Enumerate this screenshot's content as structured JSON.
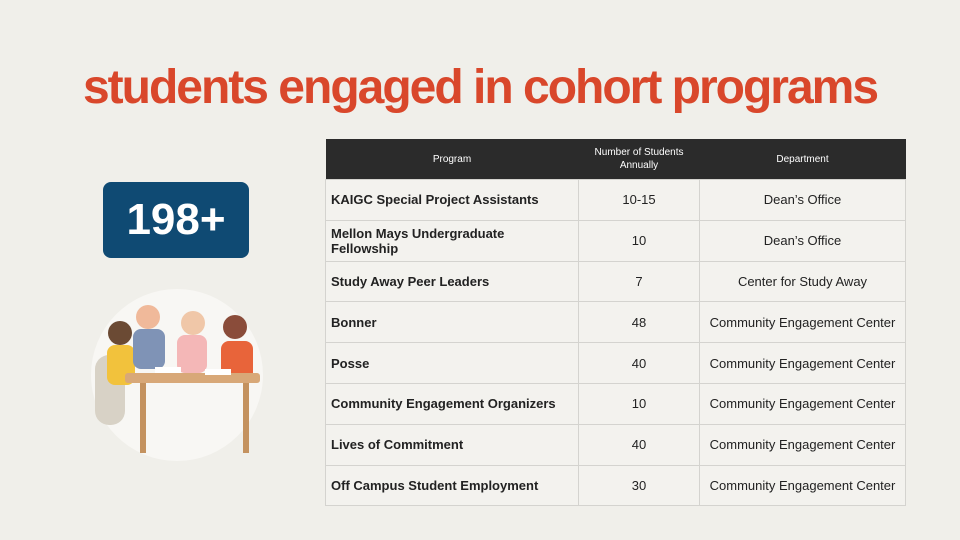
{
  "title": "students engaged in cohort programs",
  "badge": "198+",
  "table": {
    "headers": [
      "Program",
      "Number of Students Annually",
      "Department"
    ],
    "rows": [
      [
        "KAIGC Special Project Assistants",
        "10-15",
        "Dean’s Office"
      ],
      [
        "Mellon Mays Undergraduate Fellowship",
        "10",
        "Dean’s Office"
      ],
      [
        "Study Away Peer Leaders",
        "7",
        "Center for Study Away"
      ],
      [
        "Bonner",
        "48",
        "Community Engagement Center"
      ],
      [
        "Posse",
        "40",
        "Community Engagement Center"
      ],
      [
        "Community Engagement Organizers",
        "10",
        "Community Engagement Center"
      ],
      [
        "Lives of Commitment",
        "40",
        "Community Engagement Center"
      ],
      [
        "Off Campus Student Employment",
        "30",
        "Community Engagement Center"
      ]
    ]
  }
}
